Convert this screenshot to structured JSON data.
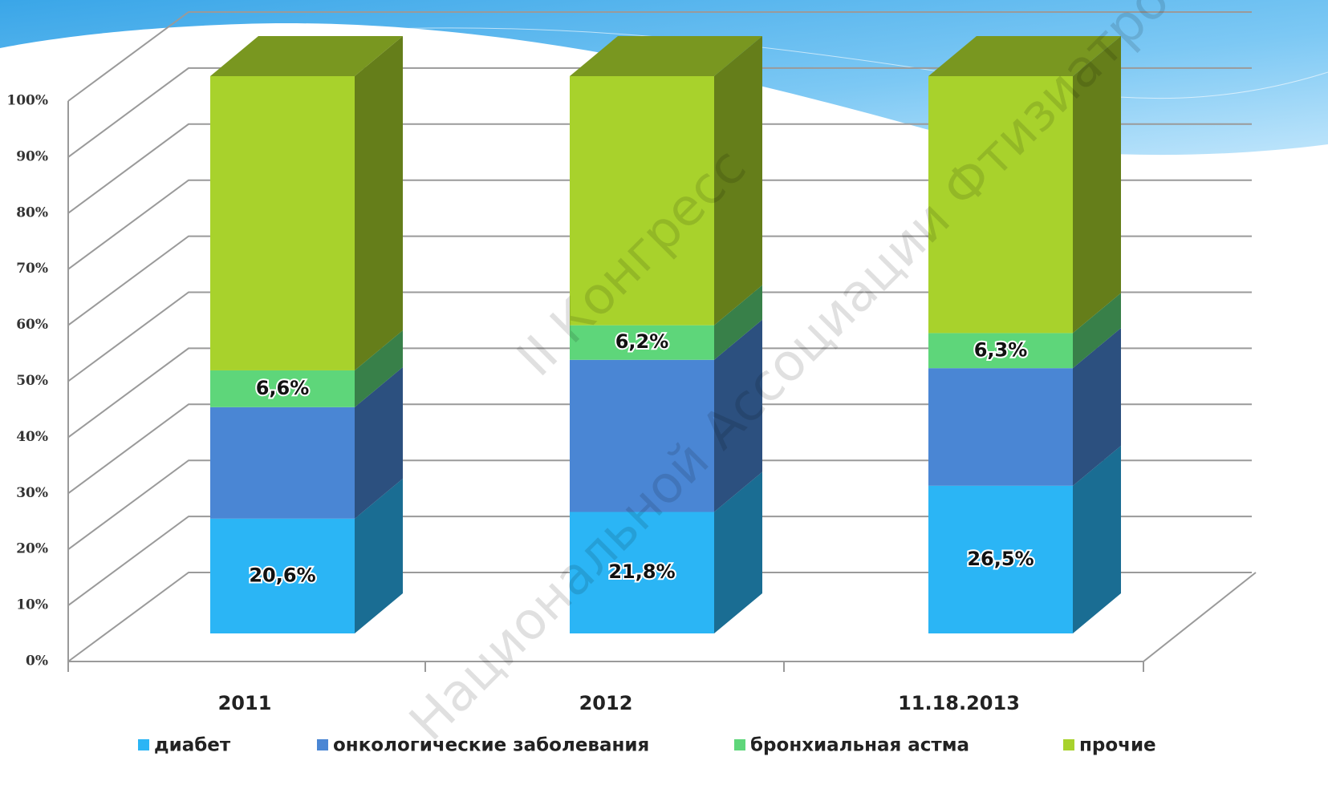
{
  "chart_data": {
    "type": "bar3d_stacked",
    "categories": [
      "2011",
      "2012",
      "11.18.2013"
    ],
    "series": [
      {
        "name": "диабет",
        "color": "#2bb5f5",
        "values": [
          20.6,
          21.8,
          26.5
        ],
        "value_labels": [
          "20,6%",
          "21,8%",
          "26,5%"
        ]
      },
      {
        "name": "онкологические заболевания",
        "color": "#4a86d4",
        "values": [
          20.0,
          27.3,
          21.1
        ]
      },
      {
        "name": "бронхиальная астма",
        "color": "#5ed67a",
        "values": [
          6.6,
          6.2,
          6.3
        ],
        "value_labels": [
          "6,6%",
          "6,2%",
          "6,3%"
        ]
      },
      {
        "name": "прочие",
        "color": "#a8d22c",
        "values": [
          52.8,
          44.7,
          46.1
        ]
      }
    ],
    "ylim": [
      0,
      100
    ],
    "yticks": [
      {
        "value": 0,
        "label": "0%"
      },
      {
        "value": 10,
        "label": "10%"
      },
      {
        "value": 20,
        "label": "20%"
      },
      {
        "value": 30,
        "label": "30%"
      },
      {
        "value": 40,
        "label": "40%"
      },
      {
        "value": 50,
        "label": "50%"
      },
      {
        "value": 60,
        "label": "60%"
      },
      {
        "value": 70,
        "label": "70%"
      },
      {
        "value": 80,
        "label": "80%"
      },
      {
        "value": 90,
        "label": "90%"
      },
      {
        "value": 100,
        "label": "100%"
      }
    ],
    "grid": true,
    "watermark": [
      "II Конгресс",
      "Национальной Ассоциации Фтизиатров"
    ]
  }
}
